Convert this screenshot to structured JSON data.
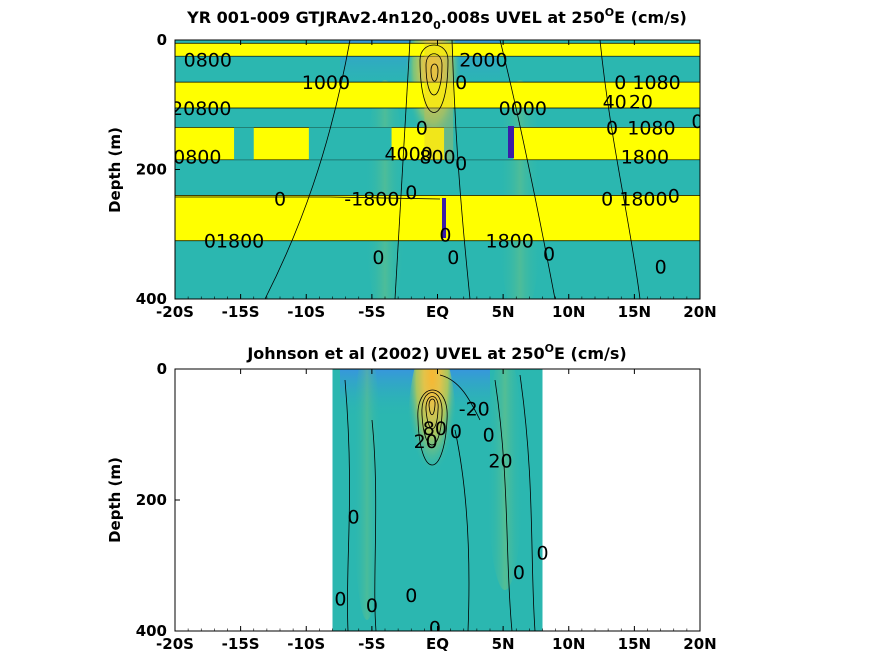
{
  "chart_data": [
    {
      "type": "heatmap",
      "title": "YR 001-009 GTJRAv2.4n120",
      "title_sub": "0",
      "title_rest": ".008s UVEL at 250",
      "title_sup": "O",
      "title_end": "E (cm/s)",
      "ylabel": "Depth (m)",
      "xlim": [
        -20,
        20
      ],
      "ylim": [
        400,
        0
      ],
      "x_ticks": [
        "-20S",
        "-15S",
        "-10S",
        "-5S",
        "EQ",
        "5N",
        "10N",
        "15N",
        "20N"
      ],
      "y_ticks": [
        "0",
        "200",
        "400"
      ],
      "background_color": "#2bb7b0",
      "highlight_color": "#ffff00",
      "yellow_bands": [
        {
          "depth": [
            5,
            25
          ],
          "x": [
            -20,
            20
          ]
        },
        {
          "depth": [
            65,
            105
          ],
          "x": [
            -20,
            20
          ]
        },
        {
          "depth": [
            135,
            185
          ],
          "x": [
            -20,
            20
          ]
        },
        {
          "depth": [
            240,
            310
          ],
          "x": [
            -20,
            20
          ]
        }
      ],
      "contour_labels": [
        {
          "text": "0800",
          "x": -17.5,
          "depth": 30
        },
        {
          "text": "2000",
          "x": 3.5,
          "depth": 30
        },
        {
          "text": "1000",
          "x": -8.5,
          "depth": 65
        },
        {
          "text": "0",
          "x": 1.8,
          "depth": 65
        },
        {
          "text": "0 1080",
          "x": 16,
          "depth": 65
        },
        {
          "text": "40",
          "x": 13.5,
          "depth": 95
        },
        {
          "text": "20",
          "x": 15.5,
          "depth": 95
        },
        {
          "text": "20800",
          "x": -18,
          "depth": 105
        },
        {
          "text": "0",
          "x": -1.2,
          "depth": 135
        },
        {
          "text": "0000",
          "x": 6.5,
          "depth": 105
        },
        {
          "text": "0",
          "x": 13.3,
          "depth": 135
        },
        {
          "text": "1080",
          "x": 16.3,
          "depth": 135
        },
        {
          "text": "0",
          "x": 19.8,
          "depth": 125
        },
        {
          "text": "0800",
          "x": -18.3,
          "depth": 180
        },
        {
          "text": "4000",
          "x": -2.2,
          "depth": 175
        },
        {
          "text": "800",
          "x": 0,
          "depth": 180
        },
        {
          "text": "0",
          "x": 1.8,
          "depth": 190
        },
        {
          "text": "1800",
          "x": 15.8,
          "depth": 180
        },
        {
          "text": "0",
          "x": -12,
          "depth": 245
        },
        {
          "text": "-1800",
          "x": -5,
          "depth": 245
        },
        {
          "text": "0",
          "x": -2,
          "depth": 235
        },
        {
          "text": "0 1800",
          "x": 15,
          "depth": 245
        },
        {
          "text": "0",
          "x": 18,
          "depth": 240
        },
        {
          "text": "01800",
          "x": -15.5,
          "depth": 310
        },
        {
          "text": "0",
          "x": 0.6,
          "depth": 300
        },
        {
          "text": "1800",
          "x": 5.5,
          "depth": 310
        },
        {
          "text": "0",
          "x": -4.5,
          "depth": 335
        },
        {
          "text": "0",
          "x": 1.2,
          "depth": 335
        },
        {
          "text": "0",
          "x": 8.5,
          "depth": 330
        },
        {
          "text": "0",
          "x": 17,
          "depth": 350
        }
      ]
    },
    {
      "type": "heatmap",
      "title": "Johnson et al (2002) UVEL at 250",
      "title_sup": "O",
      "title_end": "E (cm/s)",
      "ylabel": "Depth (m)",
      "xlim": [
        -20,
        20
      ],
      "ylim": [
        400,
        0
      ],
      "data_x_range": [
        -8,
        8
      ],
      "x_ticks": [
        "-20S",
        "-15S",
        "-10S",
        "-5S",
        "EQ",
        "5N",
        "10N",
        "15N",
        "20N"
      ],
      "y_ticks": [
        "0",
        "200",
        "400"
      ],
      "background_color": "#2bb7b0",
      "core_max_x": -0.5,
      "core_max_depth": 60,
      "contour_labels": [
        {
          "text": "-20",
          "x": 2.8,
          "depth": 60
        },
        {
          "text": "80",
          "x": -0.2,
          "depth": 90
        },
        {
          "text": "20",
          "x": -0.9,
          "depth": 110
        },
        {
          "text": "0",
          "x": 1.4,
          "depth": 95
        },
        {
          "text": "0",
          "x": 3.9,
          "depth": 100
        },
        {
          "text": "20",
          "x": 4.8,
          "depth": 140
        },
        {
          "text": "0",
          "x": -6.4,
          "depth": 225
        },
        {
          "text": "0",
          "x": 8,
          "depth": 280
        },
        {
          "text": "0",
          "x": 6.2,
          "depth": 310
        },
        {
          "text": "0",
          "x": -7.4,
          "depth": 350
        },
        {
          "text": "0",
          "x": -5,
          "depth": 360
        },
        {
          "text": "0",
          "x": -2,
          "depth": 345
        },
        {
          "text": "0",
          "x": -0.2,
          "depth": 395
        }
      ]
    }
  ]
}
